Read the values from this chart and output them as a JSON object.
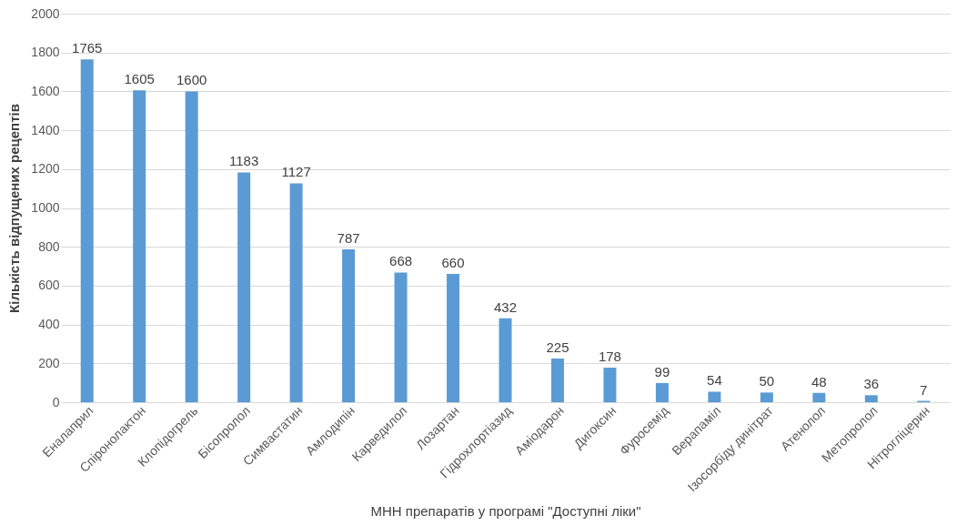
{
  "chart_data": {
    "type": "bar",
    "xlabel": "МНН препаратів у програмі \"Доступні ліки\"",
    "ylabel": "Кількість відпущених рецептів",
    "categories": [
      "Еналаприл",
      "Спіронолактон",
      "Клопідогрель",
      "Бісопролол",
      "Симвастатин",
      "Амлодипін",
      "Карведилол",
      "Лозартан",
      "Гідрохлортіазид",
      "Аміодарон",
      "Дигоксин",
      "Фуросемід",
      "Верапаміл",
      "Ізосорбіду динітрат",
      "Атенолол",
      "Метопролол",
      "Нітрогліцерин"
    ],
    "values": [
      1765,
      1605,
      1600,
      1183,
      1127,
      787,
      668,
      660,
      432,
      225,
      178,
      99,
      54,
      50,
      48,
      36,
      7
    ],
    "color": "#5b9bd5",
    "ylim": [
      0,
      2000
    ],
    "yticks": [
      0,
      200,
      400,
      600,
      800,
      1000,
      1200,
      1400,
      1600,
      1800,
      2000
    ],
    "grid": "y",
    "data_labels": true
  }
}
